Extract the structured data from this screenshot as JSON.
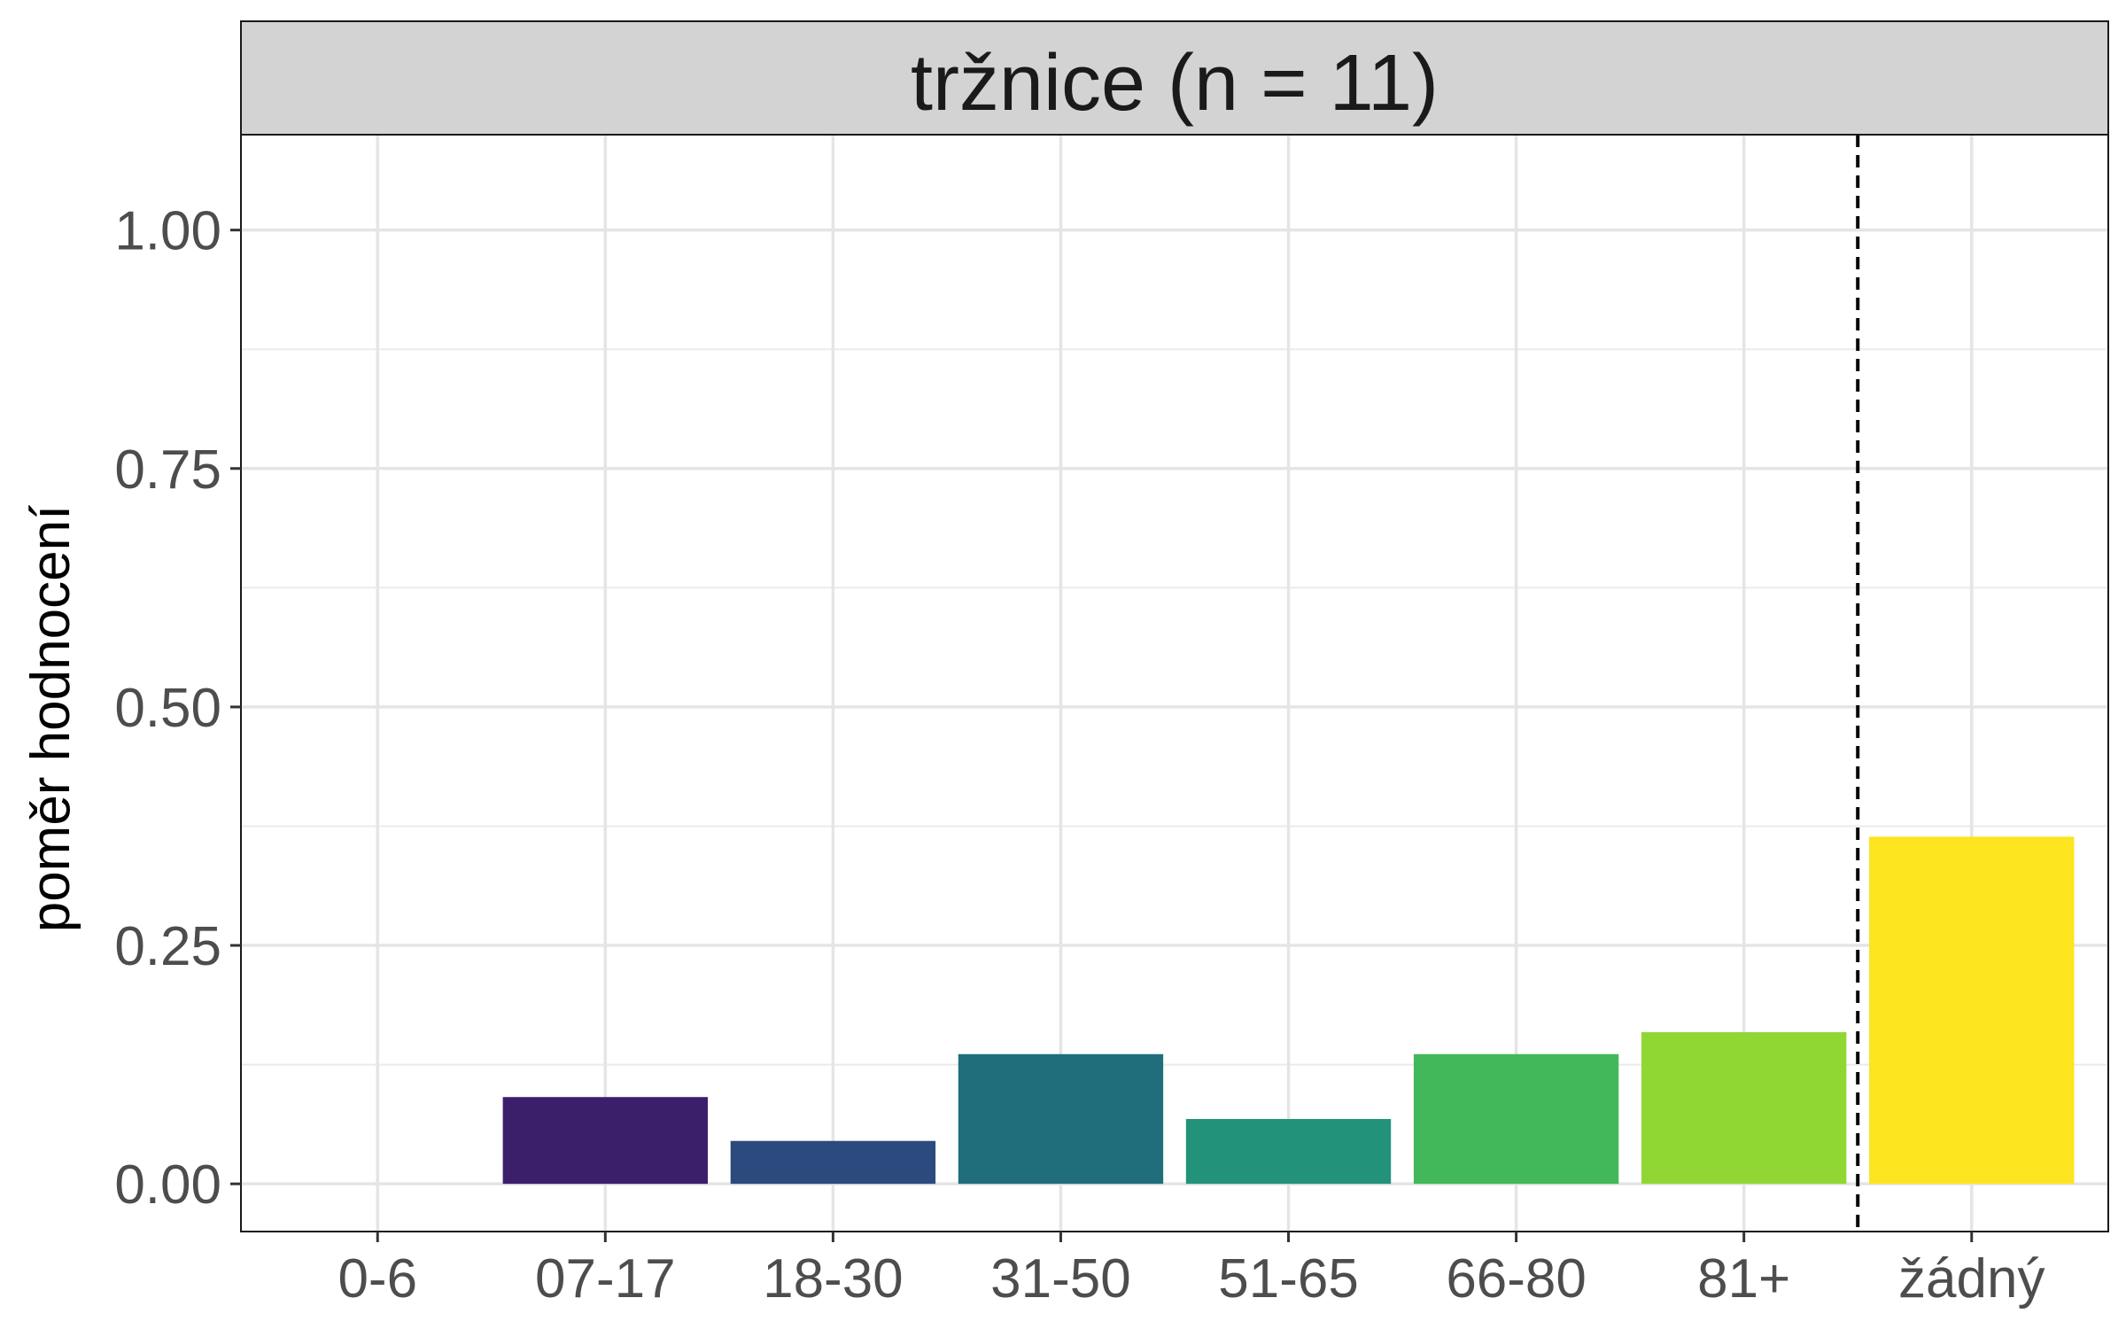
{
  "chart_data": {
    "type": "bar",
    "title": "tržnice (n = 11)",
    "xlabel": "",
    "ylabel": "poměr hodnocení",
    "categories": [
      "0-6",
      "07-17",
      "18-30",
      "31-50",
      "51-65",
      "66-80",
      "81+",
      "žádný"
    ],
    "values": [
      0,
      0.091,
      0.045,
      0.136,
      0.068,
      0.136,
      0.159,
      0.364
    ],
    "colors": [
      "#440154",
      "#3b1f6b",
      "#2c4a7d",
      "#206e7c",
      "#22937a",
      "#42b85a",
      "#90d733",
      "#fce51f"
    ],
    "ylim": [
      -0.05,
      1.1
    ],
    "yticks": [
      0,
      0.25,
      0.5,
      0.75,
      1.0
    ],
    "ytick_labels": [
      "0.00",
      "0.25",
      "0.50",
      "0.75",
      "1.00"
    ],
    "grid": true,
    "separator_line": {
      "between": [
        "81+",
        "žádný"
      ],
      "style": "dashed"
    }
  }
}
